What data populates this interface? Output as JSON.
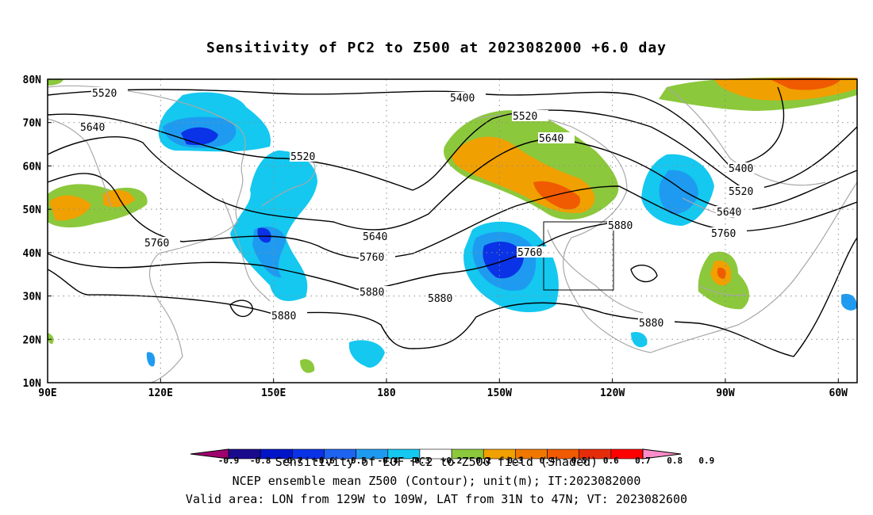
{
  "title": "Sensitivity of PC2 to Z500 at 2023082000 +6.0 day",
  "map": {
    "lon_range": [
      90,
      305
    ],
    "lat_range": [
      10,
      80
    ],
    "lat_ticks": [
      "10N",
      "20N",
      "30N",
      "40N",
      "50N",
      "60N",
      "70N",
      "80N"
    ],
    "lon_ticks": [
      "90E",
      "120E",
      "150E",
      "180",
      "150W",
      "120W",
      "90W",
      "60W"
    ],
    "valid_box": {
      "lon_west": -129,
      "lon_east": -109,
      "lat_south": 31,
      "lat_north": 47
    },
    "contour_labels": [
      "5520",
      "5640",
      "5400",
      "5520",
      "5640",
      "5520",
      "5400",
      "5520",
      "5640",
      "5640",
      "5760",
      "5760",
      "5760",
      "5880",
      "5880",
      "5880",
      "5880",
      "5880",
      "5760",
      "5760"
    ]
  },
  "colorbar": {
    "levels": [
      "-0.9",
      "-0.8",
      "-0.7",
      "-0.6",
      "-0.5",
      "-0.4",
      "-0.3",
      "-0.2",
      "0.2",
      "0.3",
      "0.4",
      "0.5",
      "0.6",
      "0.7",
      "0.8",
      "0.9"
    ],
    "colors": [
      "#a0006e",
      "#1a0a8c",
      "#0014c8",
      "#0a32e6",
      "#1e64f0",
      "#1e9bf0",
      "#14c8f0",
      "#ffffff",
      "#8cc83c",
      "#f0a000",
      "#f07800",
      "#f05a00",
      "#e62d0a",
      "#ff0000",
      "#ff8cc8"
    ]
  },
  "footer": {
    "line1": "Sensitivity of EOF PC2 to Z500 field (Shaded)",
    "line2": "NCEP ensemble mean Z500 (Contour); unit(m); IT:2023082000",
    "line3": "Valid area: LON from 129W to 109W, LAT from 31N to 47N; VT: 2023082600"
  }
}
